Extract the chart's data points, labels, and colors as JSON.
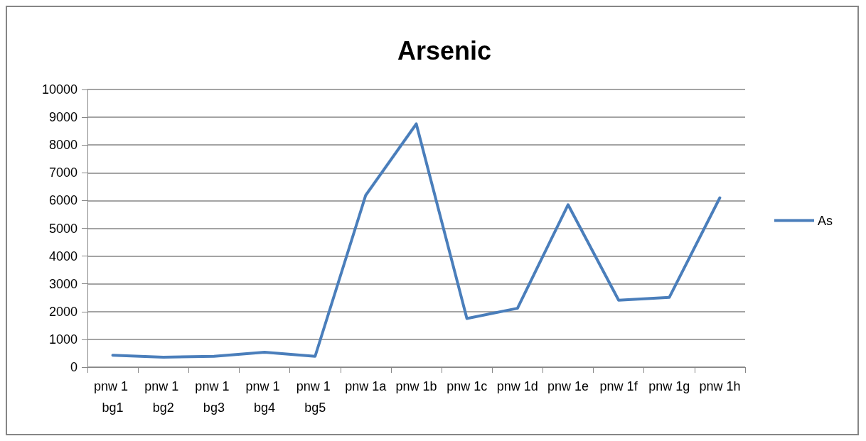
{
  "chart_data": {
    "type": "line",
    "title": "Arsenic",
    "categories": [
      "pnw 1 bg1",
      "pnw 1 bg2",
      "pnw 1 bg3",
      "pnw 1 bg4",
      "pnw 1 bg5",
      "pnw 1a",
      "pnw 1b",
      "pnw 1c",
      "pnw 1d",
      "pnw 1e",
      "pnw 1f",
      "pnw 1g",
      "pnw 1h"
    ],
    "series": [
      {
        "name": "As",
        "color": "#4a7ebb",
        "values": [
          430,
          360,
          390,
          540,
          390,
          6190,
          8760,
          1750,
          2120,
          5850,
          2410,
          2510,
          6100
        ]
      }
    ],
    "ylim": [
      0,
      10000
    ],
    "yticks": [
      0,
      1000,
      2000,
      3000,
      4000,
      5000,
      6000,
      7000,
      8000,
      9000,
      10000
    ],
    "grid": "y",
    "legend": "right",
    "marker": "none",
    "line_style": "solid"
  }
}
